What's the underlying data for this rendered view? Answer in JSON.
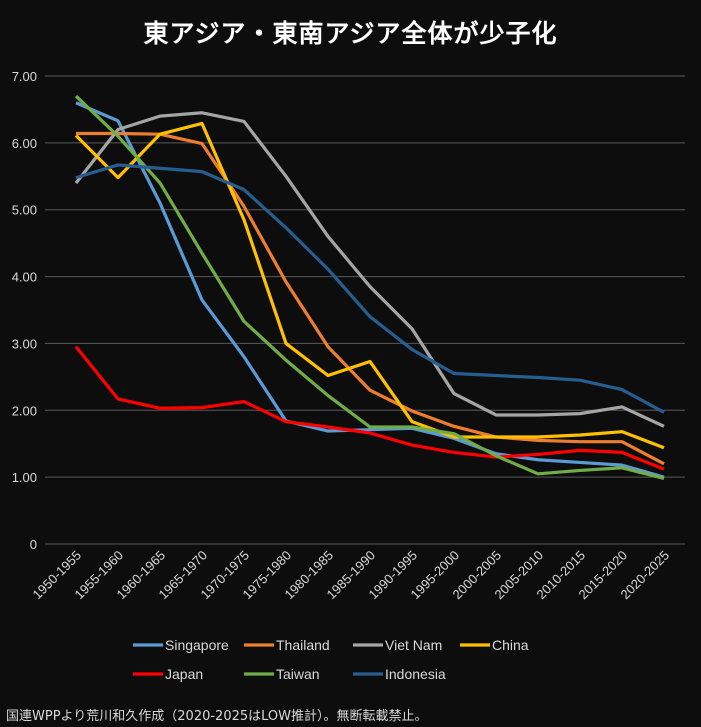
{
  "chart_data": {
    "type": "line",
    "title": "東アジア・東南アジア全体が少子化",
    "xlabel": "",
    "ylabel": "",
    "ylim": [
      0,
      7
    ],
    "yticks": [
      "0",
      "1.00",
      "2.00",
      "3.00",
      "4.00",
      "5.00",
      "6.00",
      "7.00"
    ],
    "grid": true,
    "legend_placement": "bottom",
    "categories": [
      "1950-1955",
      "1955-1960",
      "1960-1965",
      "1965-1970",
      "1970-1975",
      "1975-1980",
      "1980-1985",
      "1985-1990",
      "1990-1995",
      "1995-2000",
      "2000-2005",
      "2005-2010",
      "2010-2015",
      "2015-2020",
      "2020-2025"
    ],
    "series": [
      {
        "name": "Singapore",
        "color": "#5b9bd5",
        "values": [
          6.6,
          6.33,
          5.1,
          3.65,
          2.8,
          1.84,
          1.69,
          1.71,
          1.73,
          1.58,
          1.35,
          1.26,
          1.22,
          1.18,
          1.0
        ]
      },
      {
        "name": "Thailand",
        "color": "#ed7d31",
        "values": [
          6.14,
          6.14,
          6.13,
          5.99,
          5.05,
          3.92,
          2.95,
          2.3,
          1.99,
          1.76,
          1.6,
          1.55,
          1.53,
          1.53,
          1.2
        ]
      },
      {
        "name": "Viet Nam",
        "color": "#a5a5a5",
        "values": [
          5.4,
          6.2,
          6.4,
          6.45,
          6.32,
          5.5,
          4.6,
          3.85,
          3.22,
          2.25,
          1.93,
          1.93,
          1.95,
          2.05,
          1.76
        ]
      },
      {
        "name": "China",
        "color": "#ffc000",
        "values": [
          6.11,
          5.48,
          6.13,
          6.29,
          4.85,
          3.0,
          2.52,
          2.73,
          1.83,
          1.6,
          1.6,
          1.6,
          1.63,
          1.68,
          1.44
        ]
      },
      {
        "name": "Japan",
        "color": "#ff0000",
        "values": [
          2.95,
          2.17,
          2.03,
          2.04,
          2.13,
          1.83,
          1.75,
          1.66,
          1.48,
          1.37,
          1.3,
          1.34,
          1.4,
          1.37,
          1.12
        ]
      },
      {
        "name": "Taiwan",
        "color": "#70ad47",
        "values": [
          6.7,
          6.1,
          5.4,
          4.35,
          3.33,
          2.75,
          2.22,
          1.75,
          1.75,
          1.65,
          1.32,
          1.05,
          1.1,
          1.14,
          0.98
        ]
      },
      {
        "name": "Indonesia",
        "color": "#255e91",
        "values": [
          5.48,
          5.67,
          5.62,
          5.57,
          5.3,
          4.73,
          4.11,
          3.4,
          2.91,
          2.55,
          2.52,
          2.49,
          2.45,
          2.31,
          1.97
        ]
      }
    ]
  },
  "footer": "国連WPPより荒川和久作成（2020-2025はLOW推計）。無断転載禁止。"
}
